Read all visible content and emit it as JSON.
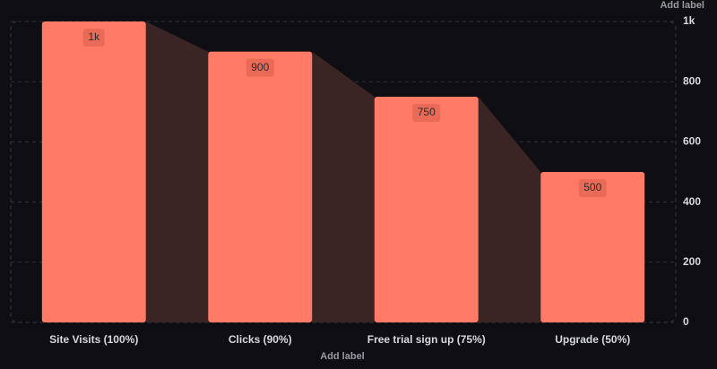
{
  "chart_data": {
    "type": "funnel-bar",
    "categories": [
      "Site Visits (100%)",
      "Clicks (90%)",
      "Free trial sign up (75%)",
      "Upgrade (50%)"
    ],
    "values": [
      1000,
      900,
      750,
      500
    ],
    "value_labels": [
      "1k",
      "900",
      "750",
      "500"
    ],
    "color": "#ff7b66",
    "connector_color": "#3b2424",
    "xlabel": "Add label",
    "ylabel": "Add label",
    "ylim": [
      0,
      1000
    ],
    "yticks": [
      0,
      200,
      400,
      600,
      800,
      {
        "value": 1000,
        "label": "1k"
      }
    ],
    "grid": true
  }
}
